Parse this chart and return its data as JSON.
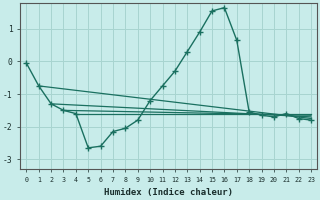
{
  "xlabel": "Humidex (Indice chaleur)",
  "bg_color": "#c8ecea",
  "grid_color": "#a8d4d0",
  "line_color": "#1a7060",
  "xlim": [
    -0.5,
    23.5
  ],
  "ylim": [
    -3.3,
    1.8
  ],
  "yticks": [
    -3,
    -2,
    -1,
    0,
    1
  ],
  "xticks": [
    0,
    1,
    2,
    3,
    4,
    5,
    6,
    7,
    8,
    9,
    10,
    11,
    12,
    13,
    14,
    15,
    16,
    17,
    18,
    19,
    20,
    21,
    22,
    23
  ],
  "main_x": [
    0,
    1,
    2,
    3,
    4,
    5,
    6,
    7,
    8,
    9,
    10,
    11,
    12,
    13,
    14,
    15,
    16,
    17,
    18,
    19,
    20,
    21,
    22,
    23
  ],
  "main_y": [
    -0.05,
    -0.75,
    -1.3,
    -1.5,
    -1.6,
    -2.65,
    -2.6,
    -2.15,
    -2.05,
    -1.8,
    -1.2,
    -0.75,
    -0.3,
    0.3,
    0.9,
    1.55,
    1.65,
    0.65,
    -1.55,
    -1.65,
    -1.7,
    -1.6,
    -1.75,
    -1.8
  ],
  "trend_lines": [
    [
      1,
      -0.75,
      23,
      -1.75
    ],
    [
      2,
      -1.3,
      23,
      -1.7
    ],
    [
      3,
      -1.5,
      23,
      -1.65
    ],
    [
      4,
      -1.6,
      23,
      -1.6
    ]
  ]
}
